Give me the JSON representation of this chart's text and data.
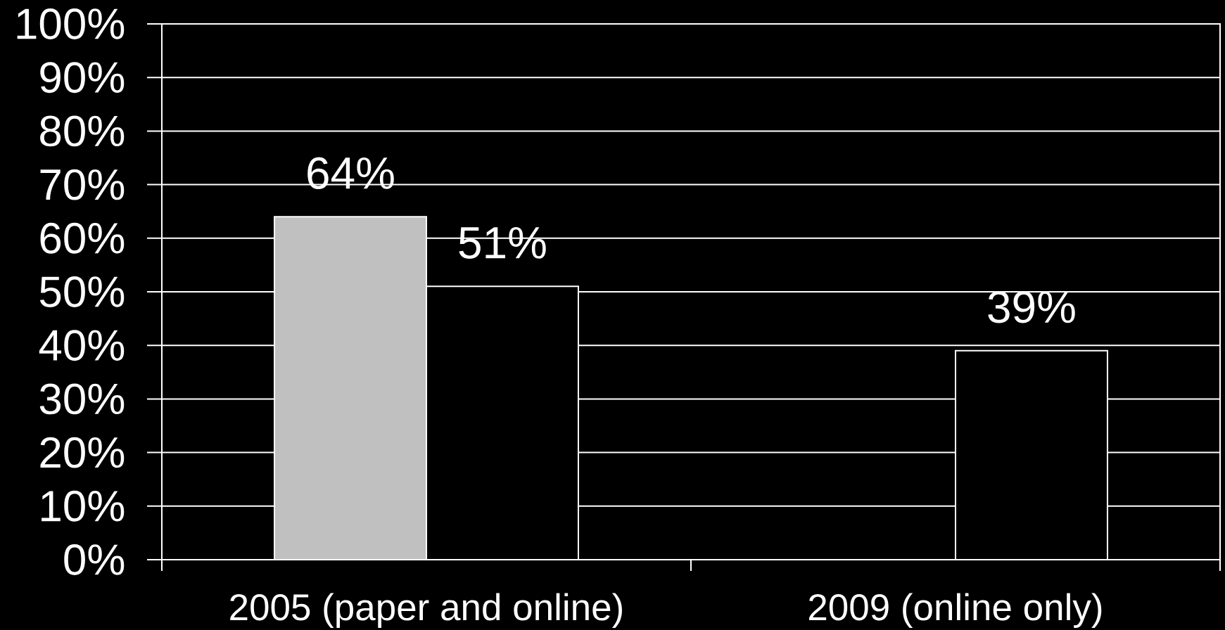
{
  "chart_data": {
    "type": "bar",
    "categories": [
      "2005 (paper and online)",
      "2009 (online only)"
    ],
    "series": [
      {
        "color": "#c0c0c0",
        "values": [
          64,
          null
        ],
        "value_labels": [
          "64%",
          null
        ]
      },
      {
        "color": "#000000",
        "values": [
          51,
          39
        ],
        "value_labels": [
          "51%",
          "39%"
        ]
      }
    ],
    "ylim": [
      0,
      100
    ],
    "yticks": [
      {
        "value": 0,
        "label": "0%"
      },
      {
        "value": 10,
        "label": "10%"
      },
      {
        "value": 20,
        "label": "20%"
      },
      {
        "value": 30,
        "label": "30%"
      },
      {
        "value": 40,
        "label": "40%"
      },
      {
        "value": 50,
        "label": "50%"
      },
      {
        "value": 60,
        "label": "60%"
      },
      {
        "value": 70,
        "label": "70%"
      },
      {
        "value": 80,
        "label": "80%"
      },
      {
        "value": 90,
        "label": "90%"
      },
      {
        "value": 100,
        "label": "100%"
      }
    ],
    "grid": "y"
  }
}
